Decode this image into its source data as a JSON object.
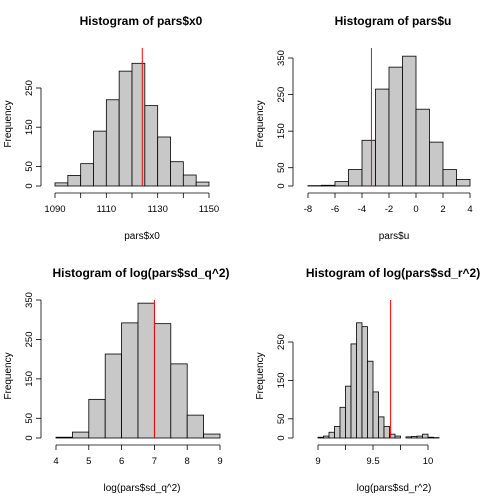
{
  "colors": {
    "bar_fill": "#c8c8c8",
    "bar_stroke": "#000000",
    "marker_line": "#ff0000"
  },
  "chart_data": [
    {
      "type": "bar",
      "title": "Histogram of pars$x0",
      "xlabel": "pars$x0",
      "ylabel": "Frequency",
      "xticks": [
        1090,
        1110,
        1130,
        1150
      ],
      "yticks": [
        0,
        50,
        150,
        250
      ],
      "xlim": [
        1087,
        1155
      ],
      "ylim": [
        0,
        300
      ],
      "bin_edges": [
        1090,
        1095,
        1100,
        1105,
        1110,
        1115,
        1120,
        1125,
        1130,
        1135,
        1140,
        1145,
        1150
      ],
      "counts": [
        8,
        27,
        57,
        140,
        220,
        293,
        313,
        205,
        125,
        62,
        28,
        10
      ],
      "marker_line": 1124
    },
    {
      "type": "bar",
      "title": "Histogram of pars$u",
      "xlabel": "pars$u",
      "ylabel": "Frequency",
      "xticks": [
        -8,
        -6,
        -4,
        -2,
        0,
        2,
        4
      ],
      "yticks": [
        0,
        50,
        150,
        250,
        350
      ],
      "xlim": [
        -8,
        4
      ],
      "ylim": [
        0,
        370
      ],
      "bin_edges": [
        -8,
        -7,
        -6,
        -5,
        -4,
        -3,
        -2,
        -1,
        0,
        1,
        2,
        3,
        4
      ],
      "counts": [
        1,
        2,
        12,
        45,
        125,
        265,
        325,
        355,
        210,
        120,
        45,
        18
      ],
      "marker_line": -3.3
    },
    {
      "type": "bar",
      "title": "Histogram of log(pars$sd_q^2)",
      "xlabel": "log(pars$sd_q^2)",
      "ylabel": "Frequency",
      "xticks": [
        4,
        5,
        6,
        7,
        8,
        9
      ],
      "yticks": [
        0,
        50,
        150,
        250,
        350
      ],
      "xlim": [
        4,
        9
      ],
      "ylim": [
        0,
        350
      ],
      "bin_edges": [
        4,
        4.5,
        5,
        5.5,
        6,
        6.5,
        7,
        7.5,
        8,
        8.5,
        9
      ],
      "counts": [
        2,
        15,
        98,
        213,
        292,
        342,
        290,
        188,
        58,
        10
      ],
      "marker_line": 7.0
    },
    {
      "type": "bar",
      "title": "Histogram of log(pars$sd_r^2)",
      "xlabel": "log(pars$sd_r^2)",
      "ylabel": "Frequency",
      "xticks": [
        9.0,
        9.5,
        10.0
      ],
      "yticks": [
        0,
        50,
        150,
        250
      ],
      "xlim": [
        8.94,
        10.36
      ],
      "ylim": [
        0,
        300
      ],
      "bin_edges": [
        8.95,
        9.0,
        9.05,
        9.1,
        9.15,
        9.2,
        9.25,
        9.3,
        9.35,
        9.4,
        9.45,
        9.5,
        9.55,
        9.6,
        9.65,
        9.7,
        9.75,
        9.8,
        9.85,
        9.9,
        9.95,
        10.0,
        10.05,
        10.1,
        10.15,
        10.2,
        10.25,
        10.3
      ],
      "counts": [
        0,
        2,
        5,
        15,
        30,
        80,
        135,
        245,
        300,
        290,
        200,
        120,
        55,
        30,
        10,
        5,
        0,
        3,
        4,
        5,
        10,
        2,
        1,
        0,
        0,
        0,
        0
      ],
      "marker_line": 9.66
    }
  ]
}
